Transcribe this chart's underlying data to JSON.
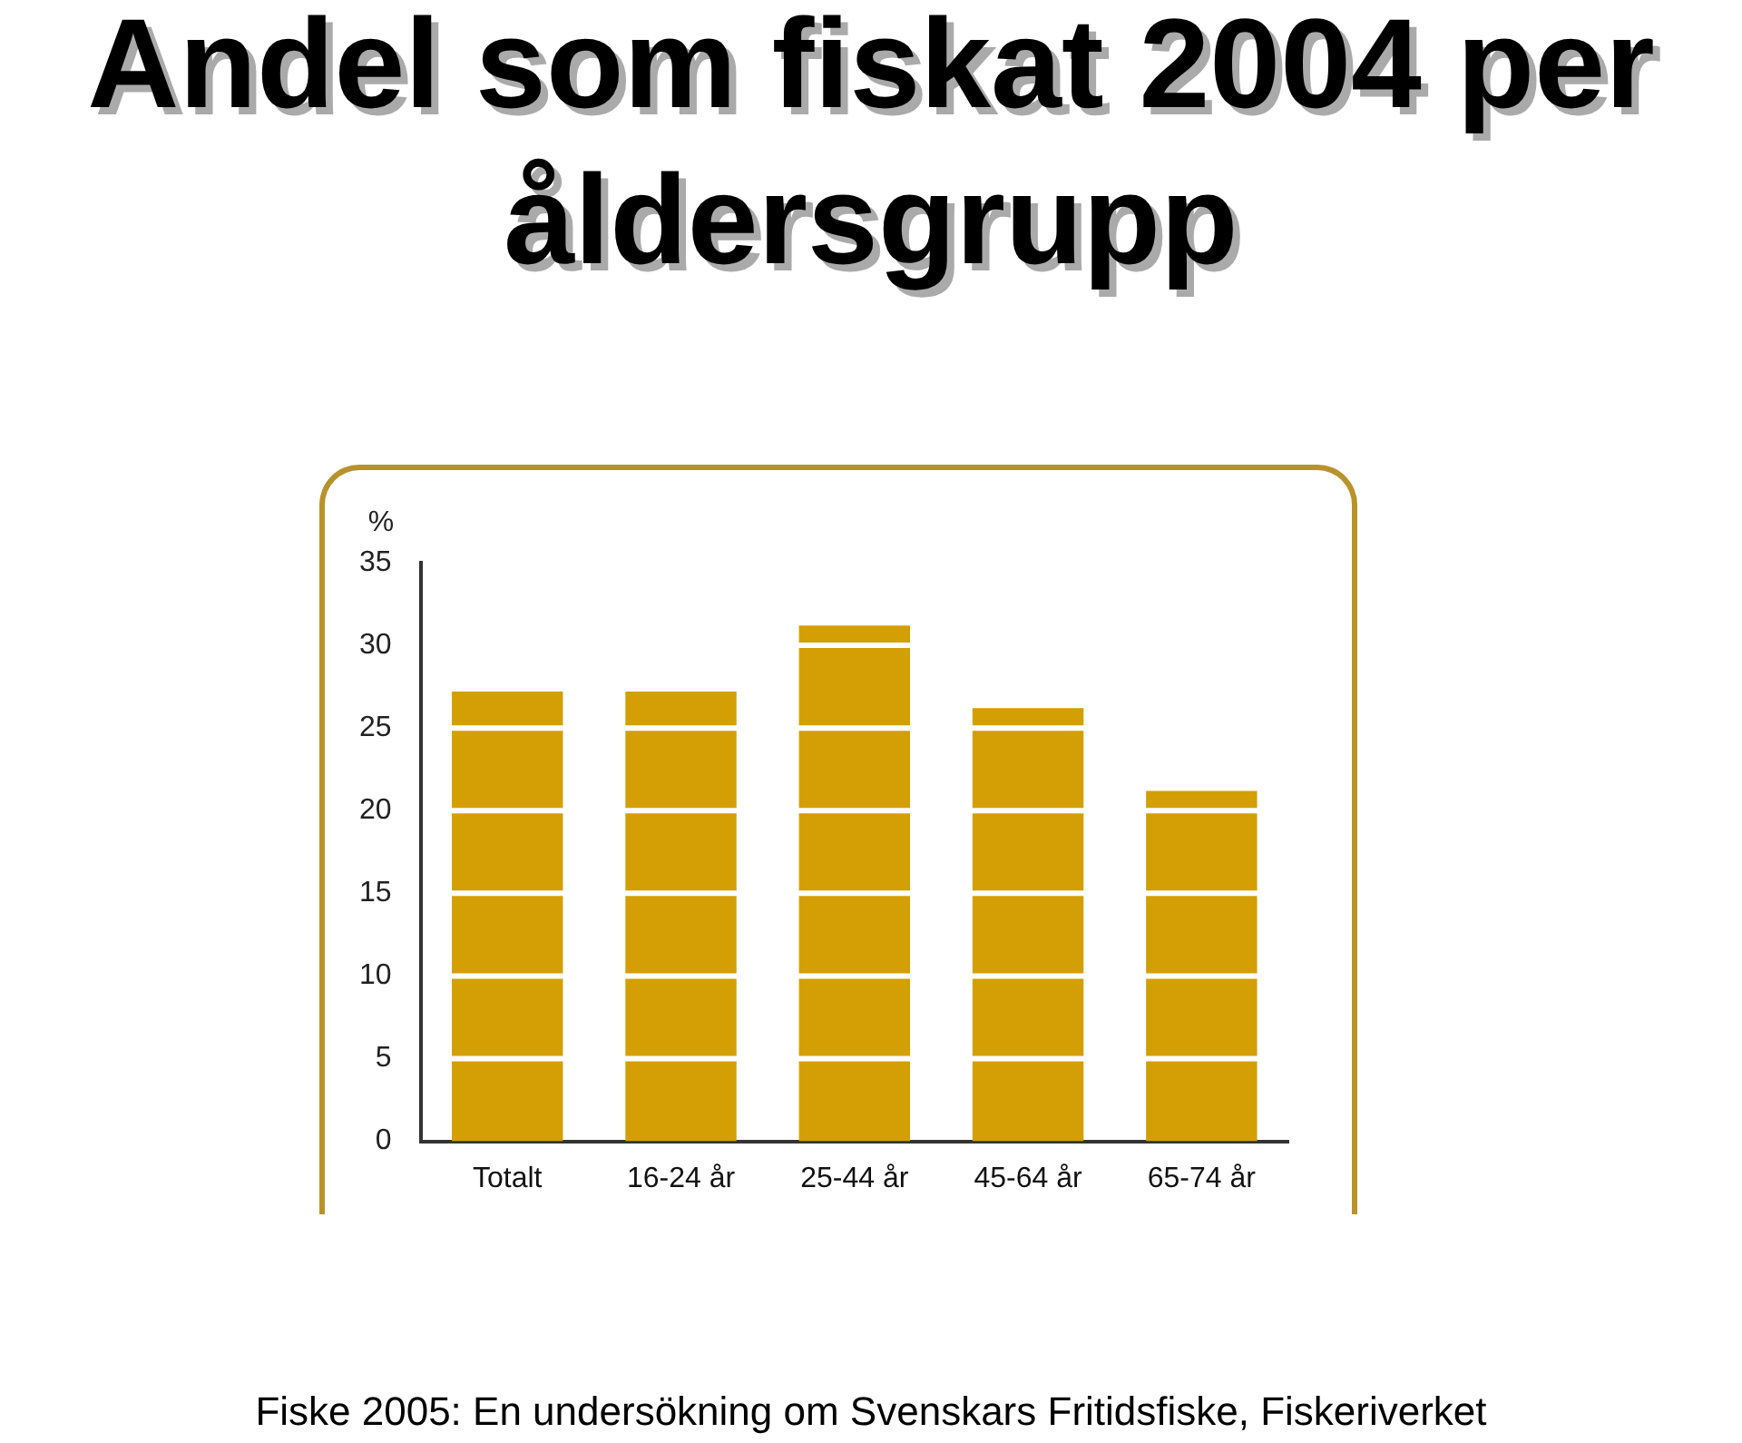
{
  "chart_data": {
    "type": "bar",
    "title": "Andel som fiskat 2004 per åldersgrupp",
    "ylabel": "%",
    "categories": [
      "Totalt",
      "16-24 år",
      "25-44 år",
      "45-64 år",
      "65-74 år"
    ],
    "values": [
      27.2,
      27.2,
      31.2,
      26.2,
      21.2
    ],
    "color": "#d49f05",
    "ylim": [
      0,
      35
    ],
    "yticks": [
      0,
      5,
      10,
      15,
      20,
      25,
      30,
      35
    ],
    "grid": "y",
    "annotations": [
      "Fiske 2005: En undersökning om Svenskars Fritidsfiske, Fiskeriverket"
    ]
  }
}
